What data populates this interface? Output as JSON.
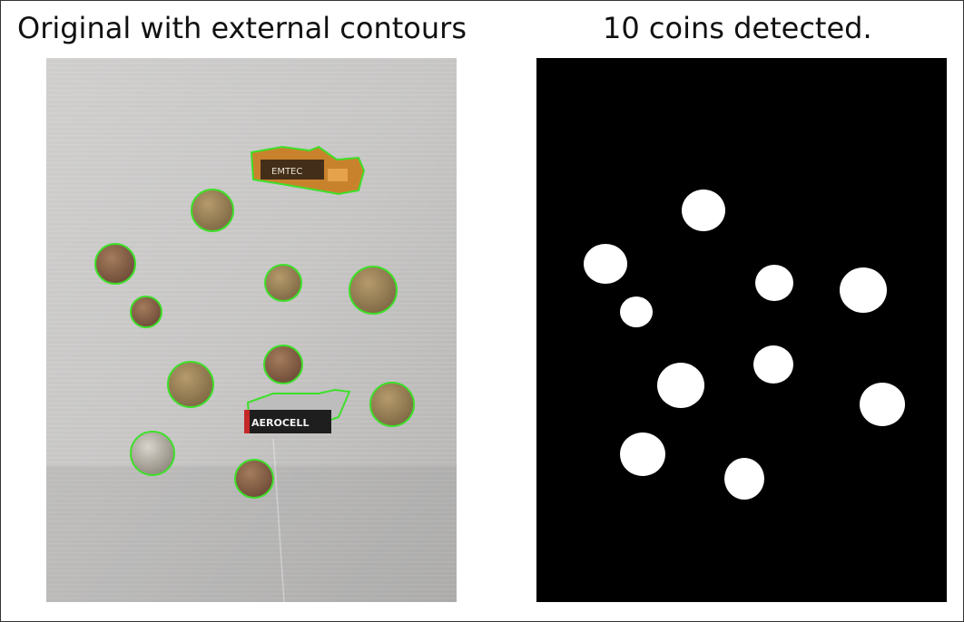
{
  "figure": {
    "left_title": "Original with external contours",
    "right_title": "10 coins detected."
  },
  "photo": {
    "battery_label": "AEROCELL",
    "usb_label": "EMTEC",
    "contour_color": "#3ee02a",
    "background_color": "#c9c8c6"
  },
  "mask": {
    "background_color": "#000000",
    "blob_color": "#ffffff",
    "coin_count": 10
  }
}
